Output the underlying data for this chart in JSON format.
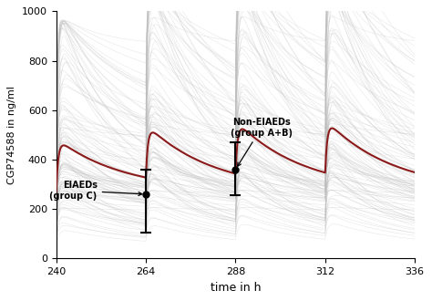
{
  "xlim": [
    240,
    336
  ],
  "ylim": [
    0,
    1000
  ],
  "xticks": [
    240,
    264,
    288,
    312,
    336
  ],
  "yticks": [
    0,
    200,
    400,
    600,
    800,
    1000
  ],
  "xlabel": "time in h",
  "ylabel": "CGP74588 in ng/ml",
  "curve_color": "#8B1A1A",
  "shade_color": "#cccccc",
  "dose_interval": 24,
  "t_start": 240,
  "t_end": 336,
  "peak_value": 470,
  "trough_value": 270,
  "ka": 1.8,
  "ke": 0.055,
  "eiaed_x": 264,
  "eiaed_y": 260,
  "eiaed_yerr_low": 155,
  "eiaed_yerr_high": 100,
  "eiaed_label": "EIAEDs",
  "eiaed_sublabel": "(group C)",
  "noneiaed_x": 288,
  "noneiaed_y": 360,
  "noneiaed_yerr_low": 105,
  "noneiaed_yerr_high": 110,
  "noneiaed_label": "Non-EIAEDs",
  "noneiaed_sublabel": "(group A+B)",
  "background_color": "#ffffff",
  "n_individuals": 120,
  "ind_lw": 0.4,
  "ind_alpha": 0.35,
  "ind_color": "#bbbbbb"
}
